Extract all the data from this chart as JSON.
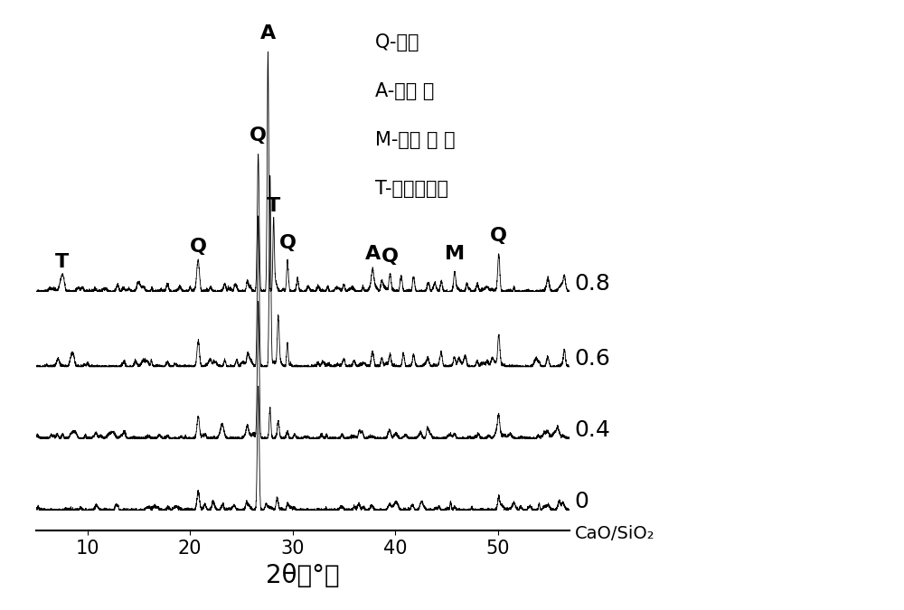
{
  "x_min": 5,
  "x_max": 57,
  "background_color": "#ffffff",
  "line_color": "#000000",
  "tick_fontsize": 15,
  "xlabel_fontsize": 20,
  "series_label_fontsize": 18,
  "peak_label_fontsize": 16,
  "legend_fontsize": 15,
  "series_labels": [
    "0.8",
    "0.6",
    "0.4",
    "0"
  ],
  "offsets": [
    3.2,
    2.1,
    1.05,
    0.0
  ],
  "legend_lines": [
    "Q-石英",
    "A-馒长 石",
    "M-微斜 长 石",
    "T-托勤莫来石"
  ],
  "cao_sio2_label": "CaO/SiO₂"
}
